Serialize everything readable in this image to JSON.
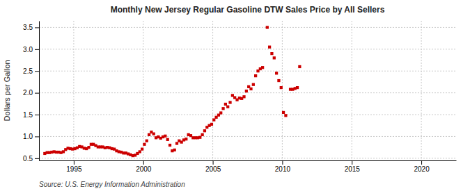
{
  "chart_data": {
    "type": "scatter",
    "title": "Monthly New Jersey Regular Gasoline DTW Sales Price by All Sellers",
    "ylabel": "Dollars per Gallon",
    "source": "Source: U.S. Energy Information Administration",
    "color": "#CC0000",
    "marker": "square",
    "grid": true,
    "xlim": [
      1992.5,
      2022.5
    ],
    "ylim": [
      0.45,
      3.65
    ],
    "xticks": [
      1995,
      2000,
      2005,
      2010,
      2015,
      2020
    ],
    "yticks": [
      0.5,
      {
        "value": 1.0,
        "label": "1.0"
      },
      1.5,
      {
        "value": 2.0,
        "label": "2.0"
      },
      2.5,
      {
        "value": 3.0,
        "label": "3.0"
      },
      3.5
    ],
    "x": [
      1992.917,
      1993.083,
      1993.25,
      1993.417,
      1993.583,
      1993.75,
      1993.917,
      1994.083,
      1994.25,
      1994.417,
      1994.583,
      1994.75,
      1994.917,
      1995.083,
      1995.25,
      1995.417,
      1995.583,
      1995.75,
      1995.917,
      1996.083,
      1996.25,
      1996.417,
      1996.583,
      1996.75,
      1996.917,
      1997.083,
      1997.25,
      1997.417,
      1997.583,
      1997.75,
      1997.917,
      1998.083,
      1998.25,
      1998.417,
      1998.583,
      1998.75,
      1998.917,
      1999.083,
      1999.25,
      1999.417,
      1999.583,
      1999.75,
      1999.917,
      2000.083,
      2000.25,
      2000.417,
      2000.583,
      2000.75,
      2000.917,
      2001.083,
      2001.25,
      2001.417,
      2001.583,
      2001.75,
      2001.917,
      2002.083,
      2002.25,
      2002.417,
      2002.583,
      2002.75,
      2002.917,
      2003.083,
      2003.25,
      2003.417,
      2003.583,
      2003.75,
      2003.917,
      2004.083,
      2004.25,
      2004.417,
      2004.583,
      2004.75,
      2004.917,
      2005.083,
      2005.25,
      2005.417,
      2005.583,
      2005.75,
      2005.917,
      2006.083,
      2006.25,
      2006.417,
      2006.583,
      2006.75,
      2006.917,
      2007.083,
      2007.25,
      2007.417,
      2007.583,
      2007.75,
      2007.917,
      2008.083,
      2008.25,
      2008.417,
      2008.583,
      2008.917,
      2009.083,
      2009.25,
      2009.417,
      2009.583,
      2009.75,
      2009.917,
      2010.083,
      2010.25,
      2010.583,
      2010.75,
      2010.917,
      2011.083,
      2011.25
    ],
    "values": [
      0.61,
      0.63,
      0.63,
      0.64,
      0.65,
      0.64,
      0.64,
      0.63,
      0.65,
      0.7,
      0.73,
      0.72,
      0.71,
      0.72,
      0.74,
      0.77,
      0.76,
      0.73,
      0.72,
      0.75,
      0.82,
      0.82,
      0.79,
      0.76,
      0.76,
      0.76,
      0.74,
      0.75,
      0.74,
      0.72,
      0.71,
      0.67,
      0.65,
      0.64,
      0.62,
      0.62,
      0.6,
      0.58,
      0.56,
      0.57,
      0.61,
      0.65,
      0.71,
      0.82,
      0.9,
      1.04,
      1.1,
      1.06,
      0.97,
      0.99,
      0.96,
      0.99,
      1.01,
      0.93,
      0.8,
      0.67,
      0.69,
      0.84,
      0.9,
      0.87,
      0.92,
      0.94,
      1.04,
      1.02,
      0.97,
      0.97,
      0.97,
      0.98,
      1.04,
      1.13,
      1.21,
      1.25,
      1.28,
      1.38,
      1.44,
      1.49,
      1.54,
      1.64,
      1.74,
      1.68,
      1.78,
      1.94,
      1.89,
      1.84,
      1.88,
      1.87,
      1.91,
      2.04,
      2.14,
      2.09,
      2.19,
      2.39,
      2.5,
      2.55,
      2.58,
      3.5,
      3.05,
      2.9,
      2.8,
      2.45,
      2.28,
      2.12,
      1.55,
      1.48,
      2.08,
      2.08,
      2.1,
      2.12,
      2.6
    ]
  }
}
